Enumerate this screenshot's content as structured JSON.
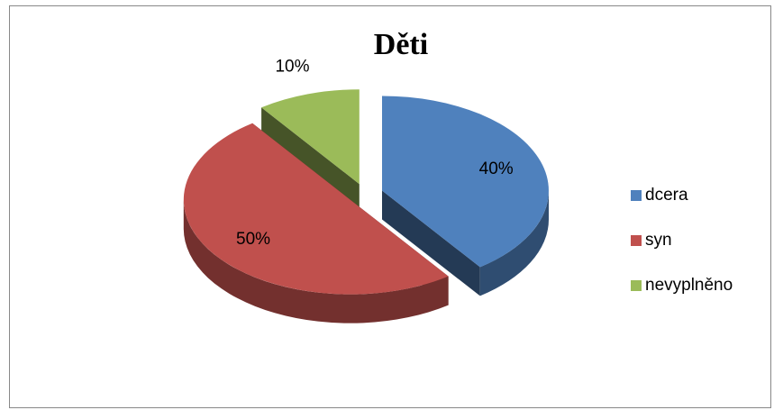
{
  "chart_data": {
    "type": "pie",
    "title": "Děti",
    "categories": [
      "dcera",
      "syn",
      "nevyplněno"
    ],
    "values": [
      40,
      50,
      10
    ],
    "value_labels": [
      "40%",
      "50%",
      "10%"
    ],
    "colors": [
      "#4f81bd",
      "#c0504d",
      "#9bbb59"
    ],
    "legend": "right"
  }
}
